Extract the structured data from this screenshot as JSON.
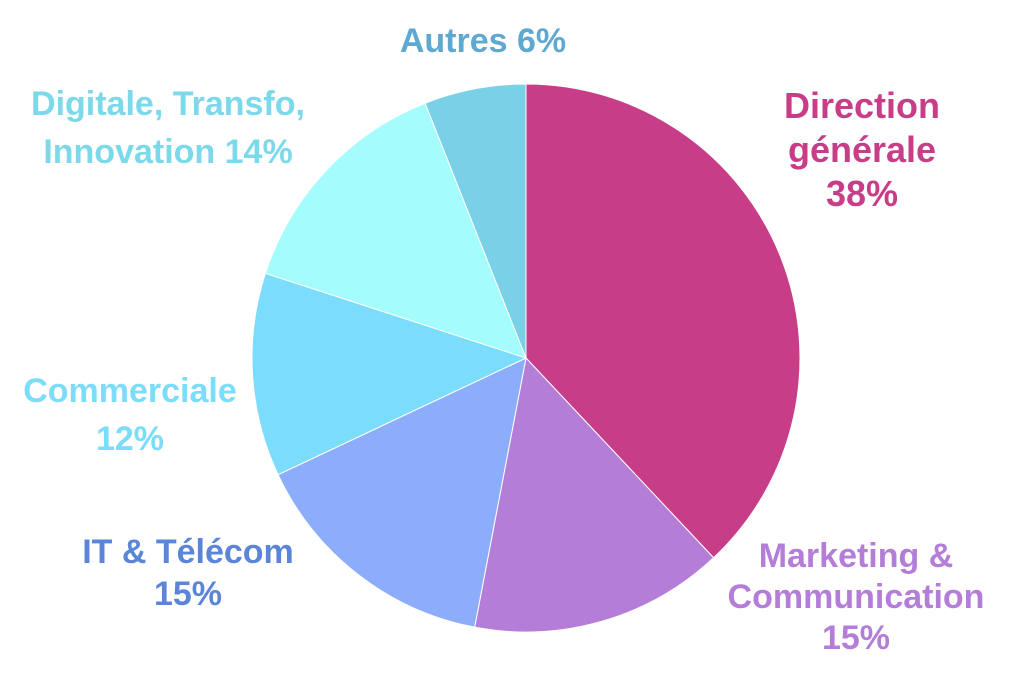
{
  "chart_data": {
    "type": "pie",
    "title": "",
    "start_angle_deg": 0,
    "direction": "clockwise",
    "slices": [
      {
        "label_lines": [
          "Direction",
          "générale"
        ],
        "value_label": "38%",
        "value": 38,
        "color": "#c73d87",
        "label_color": "#c73d87"
      },
      {
        "label_lines": [
          "Marketing &",
          "Communication"
        ],
        "value_label": "15%",
        "value": 15,
        "color": "#b47ed8",
        "label_color": "#b47ed8"
      },
      {
        "label_lines": [
          "IT & Télécom"
        ],
        "value_label": "15%",
        "value": 15,
        "color": "#8cadfb",
        "label_color": "#5b85d8"
      },
      {
        "label_lines": [
          "Commerciale"
        ],
        "value_label": "12%",
        "value": 12,
        "color": "#7bdcfb",
        "label_color": "#7bdcfb"
      },
      {
        "label_lines": [
          "Digitale, Transfo,",
          "Innovation 14%"
        ],
        "value_label": "",
        "value": 14,
        "color": "#a4fcfd",
        "label_color": "#7cd9ea"
      },
      {
        "label_lines": [
          "Autres 6%"
        ],
        "value_label": "",
        "value": 6,
        "color": "#7ad0e6",
        "label_color": "#5fa8cf"
      }
    ]
  }
}
